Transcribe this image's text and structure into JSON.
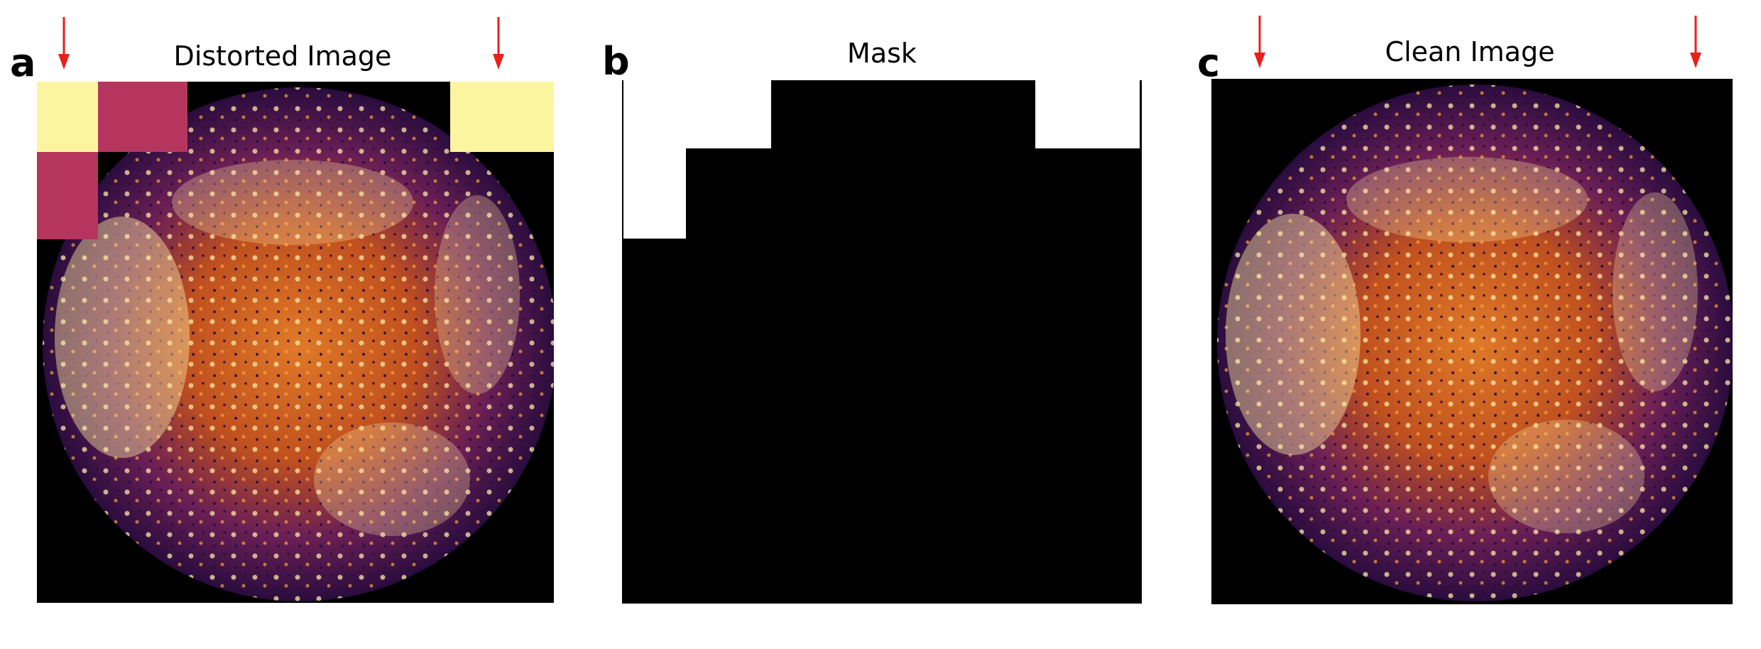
{
  "panels": {
    "a": {
      "letter": "a",
      "title": "Distorted Image"
    },
    "b": {
      "letter": "b",
      "title": "Mask"
    },
    "c": {
      "letter": "c",
      "title": "Clean Image"
    }
  },
  "colors": {
    "background": "#000000",
    "tissue_dark": "#2a0c3e",
    "tissue_mid": "#8a2a6a",
    "tissue_orange": "#e07a28",
    "tissue_bright": "#fbe6a2",
    "patch_yellow": "#fbf5a0",
    "patch_magenta": "#b6355f",
    "mask_white": "#ffffff",
    "arrow": "#e8201a"
  },
  "icons": [
    "down-arrow-icon"
  ]
}
